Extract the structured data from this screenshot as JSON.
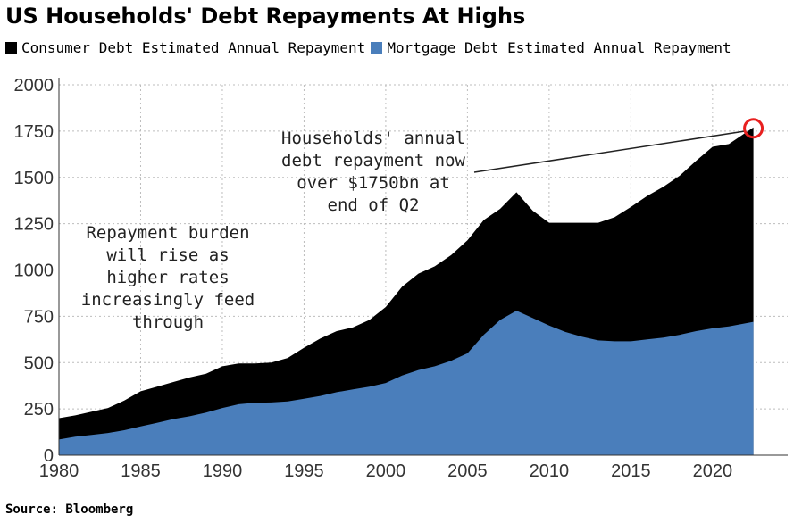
{
  "chart_data": {
    "type": "area",
    "stacked": true,
    "title": "US Households' Debt Repayments At Highs",
    "source": "Source: Bloomberg",
    "xlim": [
      1980,
      2024.6
    ],
    "ylim": [
      0,
      2000
    ],
    "x_ticks": [
      1980,
      1985,
      1990,
      1995,
      2000,
      2005,
      2010,
      2015,
      2020
    ],
    "y_ticks": [
      0,
      250,
      500,
      750,
      1000,
      1250,
      1500,
      1750,
      2000
    ],
    "grid": true,
    "legend_position": "top",
    "x": [
      1980,
      1981,
      1982,
      1983,
      1984,
      1985,
      1986,
      1987,
      1988,
      1989,
      1990,
      1991,
      1992,
      1993,
      1994,
      1995,
      1996,
      1997,
      1998,
      1999,
      2000,
      2001,
      2002,
      2003,
      2004,
      2005,
      2006,
      2007,
      2008,
      2009,
      2010,
      2011,
      2012,
      2013,
      2014,
      2015,
      2016,
      2017,
      2018,
      2019,
      2020,
      2021,
      2022.5
    ],
    "series": [
      {
        "name": "Mortgage Debt Estimated Annual Repayment",
        "color": "#4a7ebb",
        "values": [
          85,
          100,
          110,
          120,
          135,
          155,
          175,
          195,
          210,
          230,
          255,
          275,
          283,
          285,
          290,
          305,
          320,
          340,
          355,
          370,
          390,
          430,
          460,
          480,
          510,
          550,
          650,
          730,
          780,
          740,
          700,
          665,
          640,
          620,
          615,
          615,
          625,
          635,
          650,
          670,
          685,
          695,
          720
        ]
      },
      {
        "name": "Consumer Debt Estimated Annual Repayment",
        "color": "#000000",
        "values": [
          115,
          115,
          125,
          135,
          160,
          190,
          195,
          200,
          210,
          210,
          225,
          220,
          212,
          215,
          235,
          275,
          310,
          330,
          335,
          360,
          410,
          480,
          520,
          540,
          570,
          610,
          620,
          600,
          640,
          580,
          555,
          590,
          615,
          635,
          670,
          725,
          775,
          815,
          860,
          920,
          980,
          985,
          1050
        ]
      }
    ],
    "annotations": [
      {
        "lines": [
          "Households' annual",
          "debt repayment now",
          "over $1750bn at",
          "end of Q2"
        ]
      },
      {
        "lines": [
          "Repayment burden",
          "will rise as",
          "higher rates",
          "increasingly feed",
          "through"
        ]
      }
    ],
    "highlight": {
      "x": 2022.5,
      "y": 1765,
      "color": "#e8201f"
    }
  }
}
